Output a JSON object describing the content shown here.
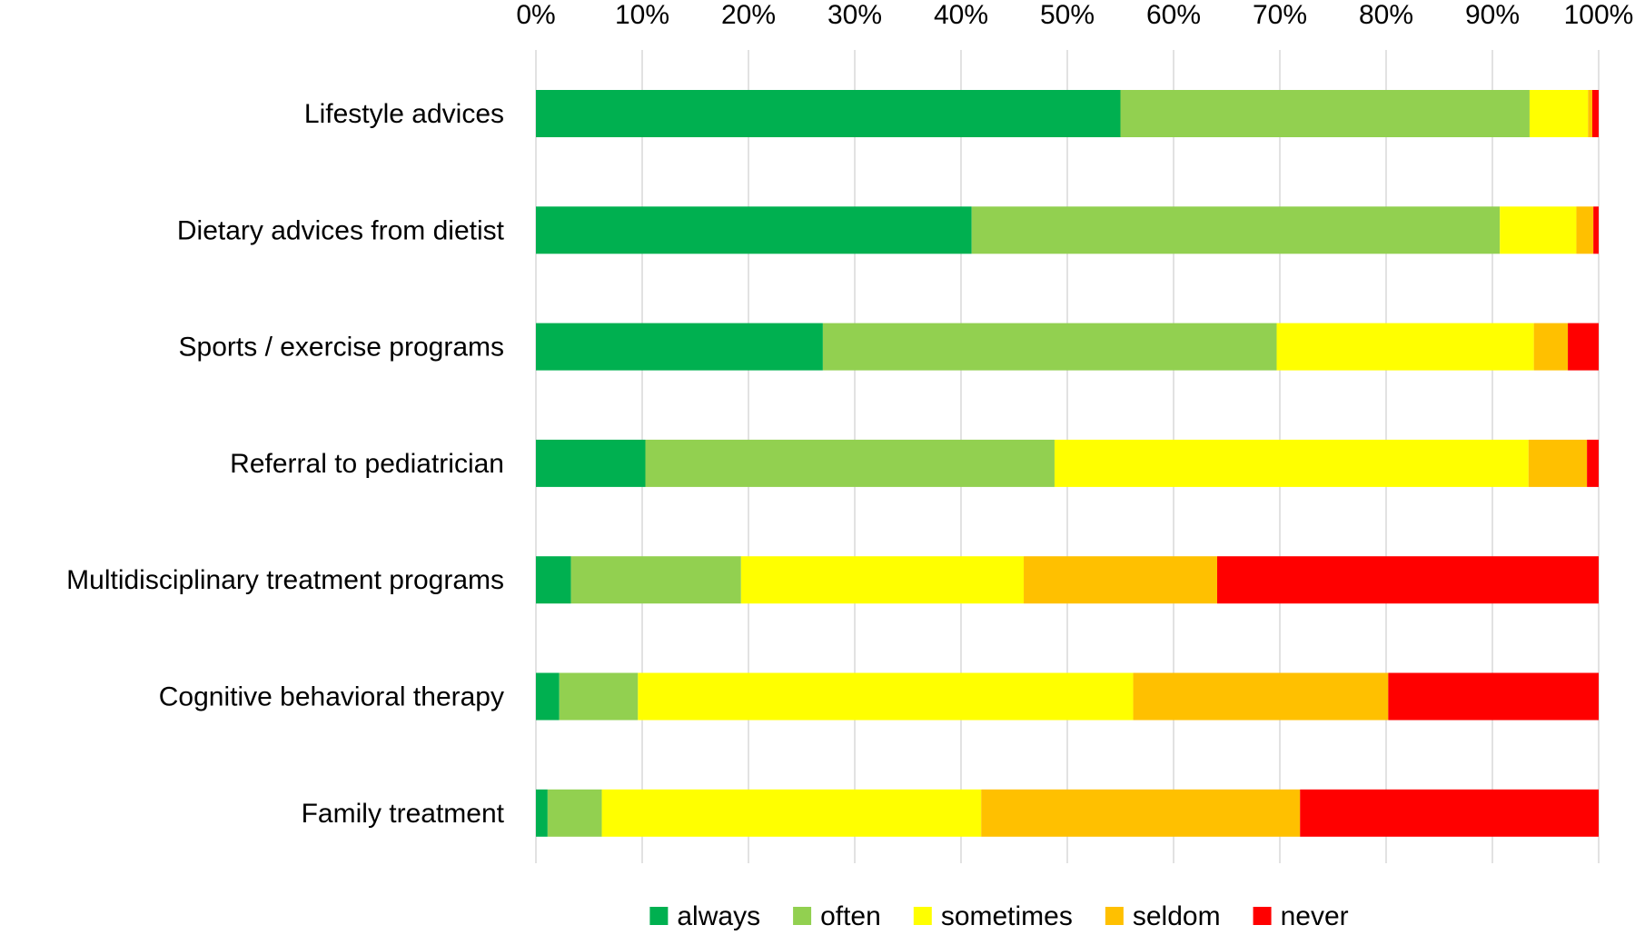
{
  "chart_data": {
    "type": "bar",
    "orientation": "horizontal",
    "stacked": "percent",
    "categories": [
      "Lifestyle advices",
      "Dietary advices from dietist",
      "Sports / exercise programs",
      "Referral to pediatrician",
      "Multidisciplinary treatment programs",
      "Cognitive behavioral therapy",
      "Family treatment"
    ],
    "series": [
      {
        "name": "always",
        "color": "#00b050",
        "values": [
          55,
          41,
          27,
          10.3,
          3.3,
          2.2,
          1.1
        ]
      },
      {
        "name": "often",
        "color": "#92d050",
        "values": [
          38.5,
          49.7,
          42.7,
          38.5,
          16.0,
          7.4,
          5.1
        ]
      },
      {
        "name": "sometimes",
        "color": "#ffff00",
        "values": [
          5.5,
          7.2,
          24.2,
          44.6,
          26.6,
          46.6,
          35.7
        ]
      },
      {
        "name": "seldom",
        "color": "#ffc000",
        "values": [
          0.4,
          1.6,
          3.2,
          5.5,
          18.2,
          24.0,
          30.0
        ]
      },
      {
        "name": "never",
        "color": "#ff0000",
        "values": [
          0.6,
          0.5,
          2.9,
          1.1,
          35.9,
          19.8,
          28.1
        ]
      }
    ],
    "x_ticks": [
      "0%",
      "10%",
      "20%",
      "30%",
      "40%",
      "50%",
      "60%",
      "70%",
      "80%",
      "90%",
      "100%"
    ],
    "xlim": [
      0,
      100
    ],
    "x_axis_position": "top",
    "grid": "vertical",
    "gridline_color": "#d9d9d9",
    "legend_position": "bottom"
  }
}
